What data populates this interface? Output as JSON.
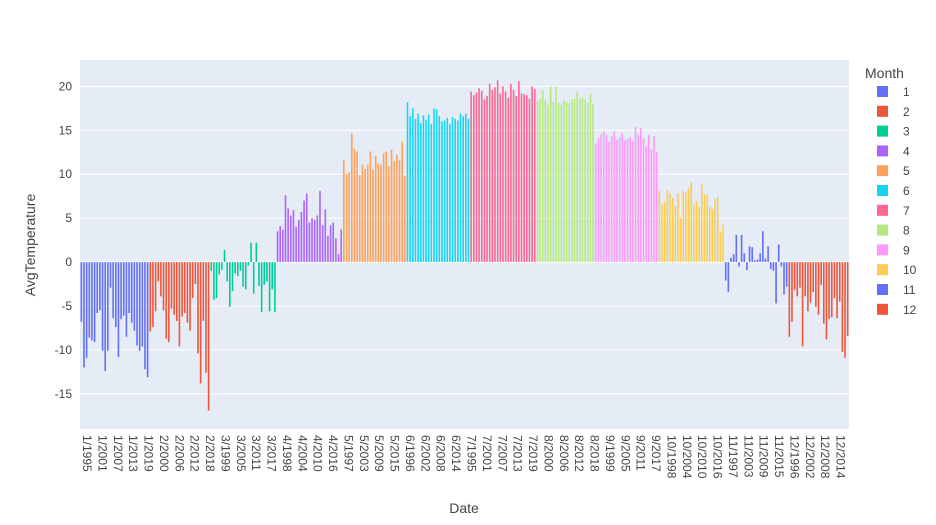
{
  "chart_data": {
    "type": "bar",
    "xlabel": "Date",
    "ylabel": "AvgTemperature",
    "ylim": [
      -19,
      23
    ],
    "yticks": [
      -15,
      -10,
      -5,
      0,
      5,
      10,
      15,
      20
    ],
    "grid": true,
    "legend_title": "Month",
    "legend_position": "right",
    "x_categories_printed": [
      "1/1995",
      "1/2001",
      "1/2007",
      "1/2013",
      "1/2019",
      "2/2000",
      "2/2006",
      "2/2012",
      "2/2018",
      "3/1999",
      "3/2005",
      "3/2011",
      "3/2017",
      "4/1998",
      "4/2004",
      "4/2010",
      "4/2016",
      "5/1997",
      "5/2003",
      "5/2009",
      "5/2015",
      "6/1996",
      "6/2002",
      "6/2008",
      "6/2014",
      "7/1995",
      "7/2001",
      "7/2007",
      "7/2013",
      "7/2019",
      "8/2000",
      "8/2006",
      "8/2012",
      "8/2018",
      "9/1999",
      "9/2005",
      "9/2011",
      "9/2017",
      "10/1998",
      "10/2004",
      "10/2010",
      "10/2016",
      "11/1997",
      "11/2003",
      "11/2009",
      "11/2015",
      "12/1996",
      "12/2002",
      "12/2008",
      "12/2014"
    ],
    "series": [
      {
        "name": "1",
        "color": "#636efa",
        "values": [
          -6.8,
          -12.0,
          -10.9,
          -8.6,
          -8.9,
          -9.1,
          -5.8,
          -5.5,
          -10.1,
          -12.4,
          -10.1,
          -2.9,
          -6.4,
          -7.4,
          -10.8,
          -6.5,
          -6.1,
          -8.5,
          -5.8,
          -6.9,
          -7.8,
          -9.5,
          -10.1,
          -9.6,
          -12.2,
          -13.1
        ]
      },
      {
        "name": "2",
        "color": "#ef553b",
        "values": [
          -7.9,
          -7.4,
          -5.6,
          -2.2,
          -3.9,
          -5.5,
          -8.7,
          -9.1,
          -5.3,
          -6.0,
          -6.7,
          -9.6,
          -6.2,
          -5.8,
          -6.9,
          -7.8,
          -4.1,
          -2.5,
          -10.4,
          -13.8,
          -6.7,
          -12.6,
          -16.9
        ]
      },
      {
        "name": "3",
        "color": "#00cc96",
        "values": [
          -1.0,
          -4.3,
          -4.1,
          -1.4,
          -0.9,
          1.4,
          -2.2,
          -5.1,
          -3.3,
          -1.3,
          -1.6,
          -1.0,
          -2.8,
          -3.1,
          -0.4,
          2.2,
          -3.6,
          2.2,
          -2.7,
          -5.7,
          -2.6,
          -2.2,
          -5.6,
          -3.1,
          -5.7
        ]
      },
      {
        "name": "4",
        "color": "#ab63fa",
        "values": [
          3.5,
          4.1,
          3.7,
          7.6,
          6.1,
          5.3,
          5.9,
          4.0,
          4.8,
          5.7,
          7.0,
          7.8,
          4.5,
          5.0,
          4.8,
          5.3,
          8.1,
          4.2,
          6.0,
          3.0,
          4.2,
          4.5,
          2.7,
          0.9,
          3.7
        ]
      },
      {
        "name": "5",
        "color": "#ffa15a",
        "values": [
          11.6,
          10.0,
          10.2,
          14.6,
          12.9,
          12.6,
          9.9,
          11.1,
          10.6,
          11.1,
          12.6,
          10.5,
          12.1,
          11.2,
          11.1,
          12.4,
          12.6,
          10.9,
          12.8,
          11.5,
          12.2,
          11.6,
          13.7,
          9.8
        ]
      },
      {
        "name": "6",
        "color": "#19d3f3",
        "values": [
          18.2,
          16.6,
          17.5,
          16.3,
          16.9,
          15.8,
          16.7,
          16.2,
          16.8,
          15.7,
          17.5,
          17.4,
          16.6,
          16.0,
          16.1,
          16.4,
          15.7,
          16.5,
          16.3,
          16.1,
          16.9,
          16.6,
          16.9,
          16.3
        ]
      },
      {
        "name": "7",
        "color": "#ff6692",
        "values": [
          19.4,
          19.0,
          19.3,
          19.8,
          19.5,
          18.5,
          18.9,
          20.3,
          19.6,
          19.9,
          20.7,
          19.2,
          20.0,
          19.4,
          18.7,
          20.3,
          19.6,
          18.9,
          20.6,
          19.2,
          19.1,
          19.0,
          18.6,
          20.0,
          19.7
        ]
      },
      {
        "name": "8",
        "color": "#b6e880",
        "values": [
          18.3,
          18.5,
          19.6,
          18.4,
          17.9,
          20.0,
          18.2,
          20.0,
          18.1,
          17.9,
          18.4,
          18.2,
          18.1,
          18.5,
          18.6,
          19.4,
          18.6,
          18.7,
          18.5,
          18.1,
          19.2,
          18.0
        ]
      },
      {
        "name": "9",
        "color": "#ff97ff",
        "values": [
          13.5,
          14.1,
          14.6,
          14.9,
          14.5,
          13.7,
          14.3,
          14.9,
          13.9,
          14.2,
          14.7,
          13.9,
          14.0,
          14.2,
          13.8,
          15.4,
          14.5,
          15.3,
          14.1,
          13.2,
          14.5,
          12.8,
          14.3,
          12.5
        ]
      },
      {
        "name": "10",
        "color": "#fecb52",
        "values": [
          8.1,
          6.5,
          6.9,
          8.2,
          7.8,
          7.3,
          6.4,
          7.8,
          5.0,
          8.1,
          7.9,
          8.4,
          9.1,
          6.5,
          7.0,
          6.3,
          8.9,
          7.7,
          7.6,
          6.3,
          6.0,
          7.2,
          7.4,
          3.5,
          4.3
        ]
      },
      {
        "name": "11",
        "color": "#636efa",
        "values": [
          -2.1,
          -3.4,
          0.5,
          0.9,
          3.1,
          -0.5,
          3.1,
          1.0,
          -0.9,
          1.8,
          1.7,
          0.2,
          0.3,
          1.0,
          3.5,
          0.4,
          1.8,
          -0.8,
          -1.0,
          -4.7,
          2.0,
          -0.5,
          -3.7,
          -2.8
        ]
      },
      {
        "name": "12",
        "color": "#ef553b",
        "values": [
          -8.5,
          -6.8,
          -3.2,
          -3.9,
          -2.9,
          -9.6,
          -3.9,
          -5.6,
          -4.6,
          -3.4,
          -5.1,
          -6.0,
          -2.6,
          -7.0,
          -8.8,
          -6.5,
          -6.3,
          -4.1,
          -6.4,
          -4.5,
          -10.2,
          -10.9,
          -8.4
        ]
      }
    ]
  }
}
